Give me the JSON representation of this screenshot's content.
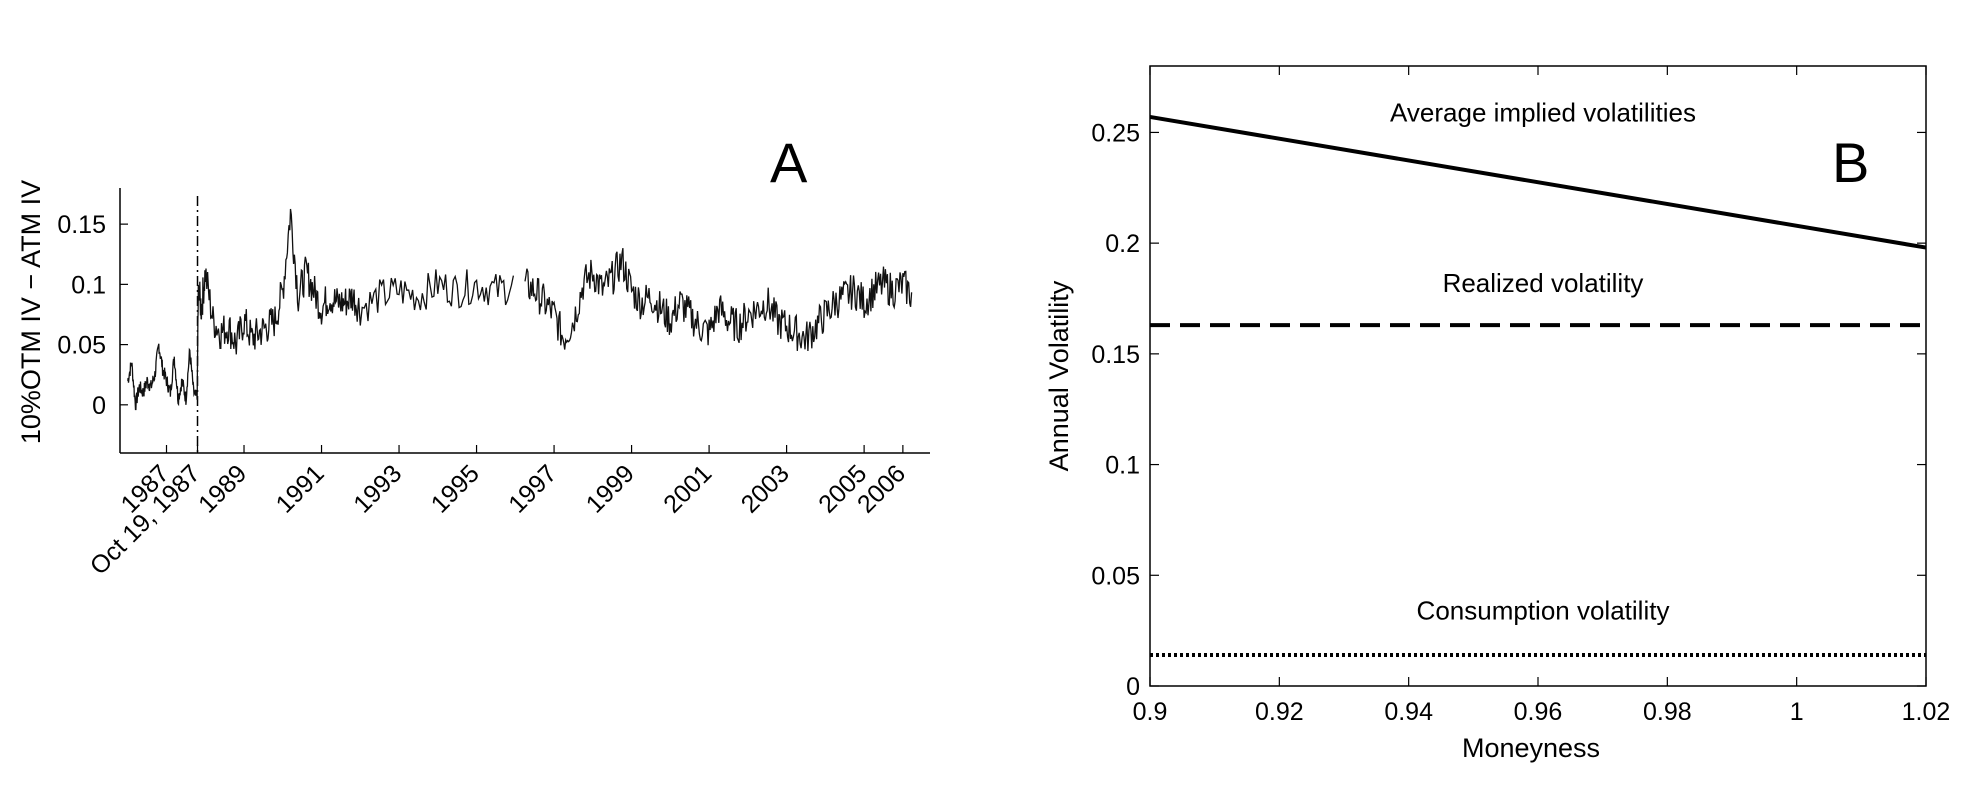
{
  "chart_data": [
    {
      "panel": "A",
      "type": "line",
      "title": "",
      "ylabel": "10%OTM IV − ATM IV",
      "xlabel": "",
      "xlim": [
        1985.8,
        2006.7
      ],
      "ylim": [
        -0.04,
        0.18
      ],
      "yticks": [
        {
          "value": 0,
          "label": "0"
        },
        {
          "value": 0.05,
          "label": "0.05"
        },
        {
          "value": 0.1,
          "label": "0.1"
        },
        {
          "value": 0.15,
          "label": "0.15"
        }
      ],
      "xticks": [
        {
          "value": 1987.0,
          "label": "1987"
        },
        {
          "value": 1987.8,
          "label": "Oct 19, 1987"
        },
        {
          "value": 1989.0,
          "label": "1989"
        },
        {
          "value": 1991.0,
          "label": "1991"
        },
        {
          "value": 1993.0,
          "label": "1993"
        },
        {
          "value": 1995.0,
          "label": "1995"
        },
        {
          "value": 1997.0,
          "label": "1997"
        },
        {
          "value": 1999.0,
          "label": "1999"
        },
        {
          "value": 2001.0,
          "label": "2001"
        },
        {
          "value": 2003.0,
          "label": "2003"
        },
        {
          "value": 2005.0,
          "label": "2005"
        },
        {
          "value": 2006.0,
          "label": "2006"
        }
      ],
      "vline": {
        "x": 1987.8,
        "label": "Oct 19, 1987",
        "style": "dash-dot"
      },
      "gap": [
        1996.0,
        1996.25
      ],
      "series": [
        {
          "x": [
            1986.0,
            1986.1,
            1986.2,
            1986.3,
            1986.4,
            1986.5,
            1986.6,
            1986.7,
            1986.8,
            1986.9,
            1987.0,
            1987.1,
            1987.2,
            1987.3,
            1987.4,
            1987.5,
            1987.6,
            1987.7,
            1987.79,
            1987.82,
            1987.9,
            1988.0,
            1988.2,
            1988.4,
            1988.6,
            1988.8,
            1989.0,
            1989.2,
            1989.4,
            1989.6,
            1989.8,
            1990.0,
            1990.2,
            1990.4,
            1990.6,
            1990.8,
            1991.0,
            1991.2,
            1991.4,
            1991.6,
            1991.8,
            1992.0,
            1992.5,
            1993.0,
            1993.5,
            1994.0,
            1994.5,
            1995.0,
            1995.5,
            1996.0,
            1996.25,
            1996.5,
            1996.75,
            1997.0,
            1997.25,
            1997.5,
            1997.75,
            1998.0,
            1998.25,
            1998.5,
            1998.75,
            1999.0,
            1999.25,
            1999.5,
            1999.75,
            2000.0,
            2000.25,
            2000.5,
            2000.75,
            2001.0,
            2001.25,
            2001.5,
            2001.75,
            2002.0,
            2002.25,
            2002.5,
            2002.75,
            2003.0,
            2003.25,
            2003.5,
            2003.75,
            2004.0,
            2004.25,
            2004.5,
            2004.75,
            2005.0,
            2005.25,
            2005.5,
            2005.75,
            2006.0,
            2006.25
          ],
          "y": [
            0.02,
            0.035,
            0.0,
            0.015,
            0.01,
            0.02,
            0.015,
            0.025,
            0.05,
            0.03,
            0.02,
            0.01,
            0.04,
            0.005,
            0.02,
            0.005,
            0.045,
            0.01,
            0.005,
            0.095,
            0.08,
            0.11,
            0.07,
            0.06,
            0.065,
            0.05,
            0.07,
            0.055,
            0.06,
            0.065,
            0.07,
            0.095,
            0.16,
            0.09,
            0.11,
            0.095,
            0.08,
            0.09,
            0.085,
            0.085,
            0.09,
            0.08,
            0.09,
            0.095,
            0.09,
            0.1,
            0.095,
            0.1,
            0.095,
            0.1,
            0.1,
            0.095,
            0.085,
            0.075,
            0.055,
            0.07,
            0.1,
            0.11,
            0.095,
            0.105,
            0.12,
            0.095,
            0.085,
            0.09,
            0.08,
            0.07,
            0.085,
            0.075,
            0.065,
            0.06,
            0.08,
            0.07,
            0.065,
            0.075,
            0.08,
            0.085,
            0.07,
            0.065,
            0.06,
            0.055,
            0.065,
            0.075,
            0.085,
            0.09,
            0.095,
            0.085,
            0.095,
            0.1,
            0.095,
            0.1,
            0.09
          ]
        }
      ]
    },
    {
      "panel": "B",
      "type": "line",
      "title": "",
      "xlabel": "Moneyness",
      "ylabel": "Annual Volatility",
      "xlim": [
        0.9,
        1.02
      ],
      "ylim": [
        0,
        0.28
      ],
      "xticks": [
        {
          "value": 0.9,
          "label": "0.9"
        },
        {
          "value": 0.92,
          "label": "0.92"
        },
        {
          "value": 0.94,
          "label": "0.94"
        },
        {
          "value": 0.96,
          "label": "0.96"
        },
        {
          "value": 0.98,
          "label": "0.98"
        },
        {
          "value": 1.0,
          "label": "1"
        },
        {
          "value": 1.02,
          "label": "1.02"
        }
      ],
      "yticks": [
        {
          "value": 0,
          "label": "0"
        },
        {
          "value": 0.05,
          "label": "0.05"
        },
        {
          "value": 0.1,
          "label": "0.1"
        },
        {
          "value": 0.15,
          "label": "0.15"
        },
        {
          "value": 0.2,
          "label": "0.2"
        },
        {
          "value": 0.25,
          "label": "0.25"
        }
      ],
      "series": [
        {
          "x": [
            0.9,
            1.02
          ],
          "y": [
            0.257,
            0.198
          ],
          "style": "solid"
        },
        {
          "x": [
            0.9,
            1.02
          ],
          "y": [
            0.163,
            0.163
          ],
          "style": "dashed"
        },
        {
          "x": [
            0.9,
            1.02
          ],
          "y": [
            0.014,
            0.014
          ],
          "style": "dotted"
        }
      ],
      "annotations": [
        {
          "text": "Average implied volatilities",
          "x": 0.96,
          "y": 0.255
        },
        {
          "text": "Realized volatility",
          "x": 0.96,
          "y": 0.178
        },
        {
          "text": "Consumption volatility",
          "x": 0.96,
          "y": 0.03
        }
      ]
    }
  ],
  "panels": {
    "a_label": "A",
    "b_label": "B"
  }
}
